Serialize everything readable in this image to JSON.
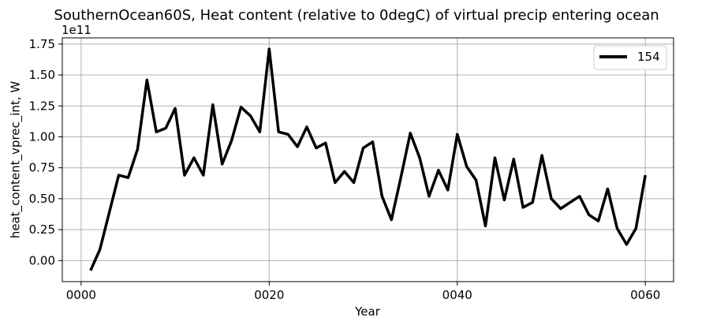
{
  "chart_data": {
    "type": "line",
    "title": "SouthernOcean60S, Heat content (relative to 0degC) of virtual precip entering ocean",
    "xlabel": "Year",
    "ylabel": "heat_content_vprec_int, W",
    "y_offset_label": "1e11",
    "y_scale": 100000000000,
    "xlim": [
      -2,
      63
    ],
    "ylim": [
      -0.17,
      1.8
    ],
    "xticks": [
      0,
      20,
      40,
      60
    ],
    "xtick_labels": [
      "0000",
      "0020",
      "0040",
      "0060"
    ],
    "yticks": [
      0.0,
      0.25,
      0.5,
      0.75,
      1.0,
      1.25,
      1.5,
      1.75
    ],
    "ytick_labels": [
      "0.00",
      "0.25",
      "0.50",
      "0.75",
      "1.00",
      "1.25",
      "1.50",
      "1.75"
    ],
    "grid": true,
    "legend_position": "top-right",
    "series": [
      {
        "name": "154",
        "color": "#000000",
        "x": [
          1,
          2,
          3,
          4,
          5,
          6,
          7,
          8,
          9,
          10,
          11,
          12,
          13,
          14,
          15,
          16,
          17,
          18,
          19,
          20,
          21,
          22,
          23,
          24,
          25,
          26,
          27,
          28,
          29,
          30,
          31,
          32,
          33,
          34,
          35,
          36,
          37,
          38,
          39,
          40,
          41,
          42,
          43,
          44,
          45,
          46,
          47,
          48,
          49,
          50,
          51,
          52,
          53,
          54,
          55,
          56,
          57,
          58,
          59,
          60
        ],
        "y": [
          -0.08,
          0.09,
          0.39,
          0.69,
          0.67,
          0.9,
          1.46,
          1.04,
          1.07,
          1.23,
          0.69,
          0.83,
          0.69,
          1.26,
          0.78,
          0.97,
          1.24,
          1.17,
          1.04,
          1.71,
          1.04,
          1.02,
          0.92,
          1.08,
          0.91,
          0.95,
          0.63,
          0.72,
          0.63,
          0.91,
          0.96,
          0.52,
          0.33,
          0.67,
          1.03,
          0.83,
          0.52,
          0.73,
          0.57,
          1.02,
          0.76,
          0.65,
          0.28,
          0.83,
          0.49,
          0.82,
          0.43,
          0.47,
          0.85,
          0.5,
          0.42,
          0.47,
          0.52,
          0.37,
          0.32,
          0.58,
          0.26,
          0.13,
          0.26,
          0.69
        ]
      }
    ]
  }
}
